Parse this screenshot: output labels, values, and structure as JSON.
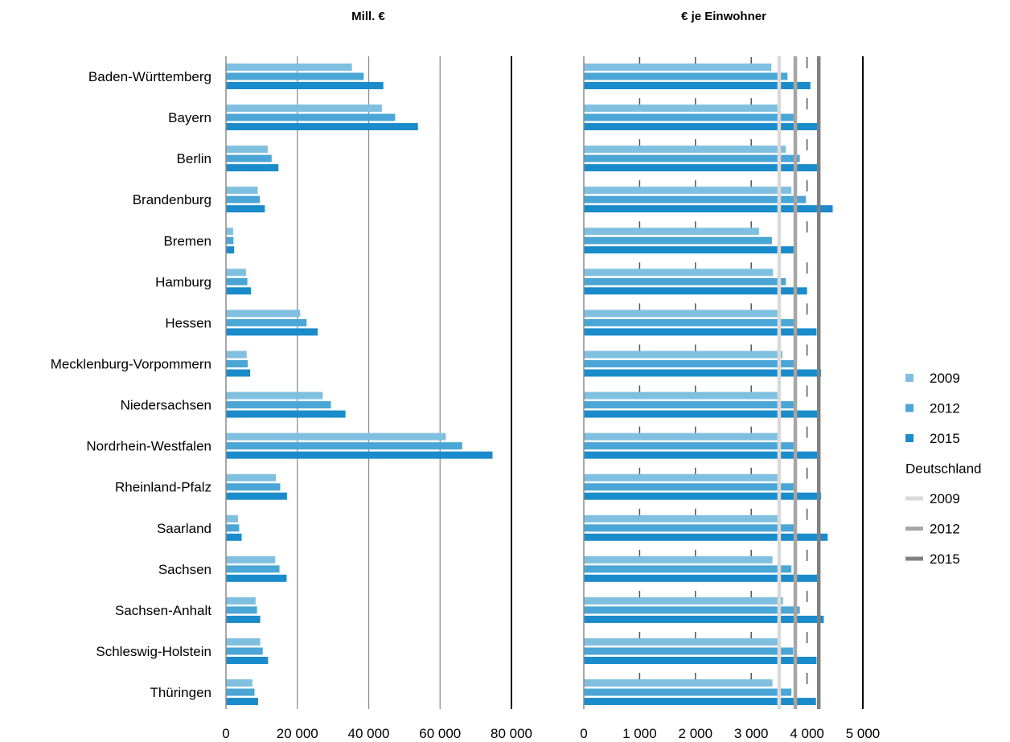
{
  "chart_data": [
    {
      "type": "bar",
      "orientation": "horizontal",
      "title": "Mill. €",
      "categories": [
        "Baden-Württemberg",
        "Bayern",
        "Berlin",
        "Brandenburg",
        "Bremen",
        "Hamburg",
        "Hessen",
        "Mecklenburg-Vorpommern",
        "Niedersachsen",
        "Nordrhein-Westfalen",
        "Rheinland-Pfalz",
        "Saarland",
        "Sachsen",
        "Sachsen-Anhalt",
        "Schleswig-Holstein",
        "Thüringen"
      ],
      "series": [
        {
          "name": "2009",
          "color": "#7fbfe0",
          "values": [
            35300,
            43700,
            11700,
            8900,
            2000,
            5600,
            20800,
            5800,
            27100,
            61600,
            14000,
            3400,
            13800,
            8300,
            9600,
            7400
          ]
        },
        {
          "name": "2012",
          "color": "#4aa6d6",
          "values": [
            38600,
            47400,
            12800,
            9500,
            2100,
            6000,
            22600,
            6100,
            29400,
            66200,
            15200,
            3700,
            15000,
            8700,
            10300,
            8000
          ]
        },
        {
          "name": "2015",
          "color": "#1a8ccb",
          "values": [
            44100,
            53800,
            14700,
            10900,
            2300,
            7000,
            25700,
            6800,
            33500,
            74700,
            17100,
            4400,
            17000,
            9600,
            11800,
            9000
          ]
        }
      ],
      "xlim": [
        0,
        80000
      ],
      "xticks": [
        0,
        20000,
        40000,
        60000,
        80000
      ],
      "xtick_labels": [
        "0",
        "20 000",
        "40 000",
        "60 000",
        "80 000"
      ],
      "grid": true
    },
    {
      "type": "bar",
      "orientation": "horizontal",
      "title": "€ je Einwohner",
      "categories": [
        "Baden-Württemberg",
        "Bayern",
        "Berlin",
        "Brandenburg",
        "Bremen",
        "Hamburg",
        "Hessen",
        "Mecklenburg-Vorpommern",
        "Niedersachsen",
        "Nordrhein-Westfalen",
        "Rheinland-Pfalz",
        "Saarland",
        "Sachsen",
        "Sachsen-Anhalt",
        "Schleswig-Holstein",
        "Thüringen"
      ],
      "series": [
        {
          "name": "2009",
          "color": "#7fbfe0",
          "values": [
            3360,
            3490,
            3620,
            3720,
            3140,
            3390,
            3490,
            3560,
            3480,
            3490,
            3490,
            3490,
            3380,
            3570,
            3490,
            3380
          ]
        },
        {
          "name": "2012",
          "color": "#4aa6d6",
          "values": [
            3650,
            3770,
            3870,
            3980,
            3370,
            3620,
            3770,
            3790,
            3770,
            3770,
            3800,
            3790,
            3720,
            3870,
            3750,
            3720
          ]
        },
        {
          "name": "2015",
          "color": "#1a8ccb",
          "values": [
            4060,
            4190,
            4190,
            4460,
            3770,
            4000,
            4170,
            4250,
            4190,
            4190,
            4250,
            4370,
            4190,
            4300,
            4170,
            4160
          ]
        }
      ],
      "reference_lines": [
        {
          "group": "Deutschland",
          "name": "2009",
          "color": "#d9d9d9",
          "value": 3500
        },
        {
          "group": "Deutschland",
          "name": "2012",
          "color": "#a6a6a6",
          "value": 3790
        },
        {
          "group": "Deutschland",
          "name": "2015",
          "color": "#808080",
          "value": 4210
        }
      ],
      "xlim": [
        0,
        5000
      ],
      "xticks": [
        0,
        1000,
        2000,
        3000,
        4000,
        5000
      ],
      "xtick_labels": [
        "0",
        "1 000",
        "2 000",
        "3 000",
        "4 000",
        "5 000"
      ],
      "grid": true
    }
  ],
  "legend": {
    "placement": "right",
    "items": [
      {
        "label": "2009",
        "color": "#7fbfe0",
        "kind": "square"
      },
      {
        "label": "2012",
        "color": "#4aa6d6",
        "kind": "square"
      },
      {
        "label": "2015",
        "color": "#1a8ccb",
        "kind": "square"
      },
      {
        "label": "Deutschland",
        "kind": "heading"
      },
      {
        "label": "2009",
        "color": "#d9d9d9",
        "kind": "line"
      },
      {
        "label": "2012",
        "color": "#a6a6a6",
        "kind": "line"
      },
      {
        "label": "2015",
        "color": "#808080",
        "kind": "line"
      }
    ]
  }
}
